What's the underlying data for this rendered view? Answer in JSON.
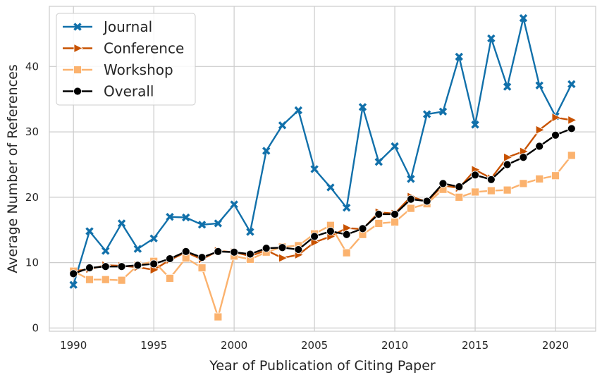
{
  "chart_data": {
    "type": "line",
    "title": "",
    "xlabel": "Year of Publication of Citing Paper",
    "ylabel": "Average Number of References",
    "xlim": [
      1988.5,
      2022.5
    ],
    "ylim": [
      -0.5,
      49.2
    ],
    "xticks": [
      "1990",
      "1995",
      "2000",
      "2005",
      "2010",
      "2015",
      "2020"
    ],
    "yticks": [
      "0",
      "10",
      "20",
      "30",
      "40"
    ],
    "grid": true,
    "legend_position": "top-left",
    "x": [
      1990,
      1991,
      1992,
      1993,
      1994,
      1995,
      1996,
      1997,
      1998,
      1999,
      2000,
      2001,
      2002,
      2003,
      2004,
      2005,
      2006,
      2007,
      2008,
      2009,
      2010,
      2011,
      2012,
      2013,
      2014,
      2015,
      2016,
      2017,
      2018,
      2019,
      2020,
      2021
    ],
    "series": [
      {
        "name": "Journal",
        "color": "#1170aa",
        "marker": "x",
        "values": [
          6.6,
          14.8,
          11.8,
          16.0,
          12.1,
          13.7,
          17.0,
          16.9,
          15.8,
          16.0,
          18.9,
          14.7,
          27.1,
          31.0,
          33.3,
          24.3,
          21.5,
          18.4,
          33.8,
          25.4,
          27.8,
          22.8,
          32.7,
          33.1,
          41.5,
          31.1,
          44.3,
          36.9,
          47.4,
          37.1,
          32.4,
          37.3
        ]
      },
      {
        "name": "Conference",
        "color": "#c85200",
        "marker": "triangle-right",
        "values": [
          8.7,
          9.0,
          9.6,
          9.5,
          9.3,
          8.9,
          10.4,
          11.6,
          10.5,
          11.8,
          11.6,
          11.0,
          11.9,
          10.7,
          11.2,
          13.1,
          14.0,
          15.3,
          15.1,
          17.7,
          17.5,
          20.1,
          19.3,
          21.8,
          21.4,
          24.2,
          22.9,
          26.1,
          27.0,
          30.3,
          32.2,
          31.8
        ]
      },
      {
        "name": "Workshop",
        "color": "#fbb26e",
        "marker": "square",
        "values": [
          8.7,
          7.4,
          7.4,
          7.3,
          9.6,
          10.2,
          7.6,
          10.7,
          9.2,
          1.7,
          11.0,
          10.5,
          11.6,
          12.4,
          12.6,
          14.4,
          15.7,
          11.5,
          14.3,
          16.0,
          16.2,
          18.3,
          19.0,
          21.2,
          20.0,
          20.8,
          21.0,
          21.1,
          22.1,
          22.8,
          23.3,
          26.4
        ]
      },
      {
        "name": "Overall",
        "color": "#000000",
        "marker": "circle",
        "values": [
          8.3,
          9.2,
          9.4,
          9.4,
          9.6,
          9.8,
          10.6,
          11.7,
          10.8,
          11.7,
          11.6,
          11.3,
          12.2,
          12.3,
          12.0,
          14.0,
          14.8,
          14.3,
          15.2,
          17.4,
          17.4,
          19.7,
          19.4,
          22.1,
          21.6,
          23.4,
          22.7,
          25.0,
          26.1,
          27.8,
          29.5,
          30.5
        ]
      }
    ]
  }
}
